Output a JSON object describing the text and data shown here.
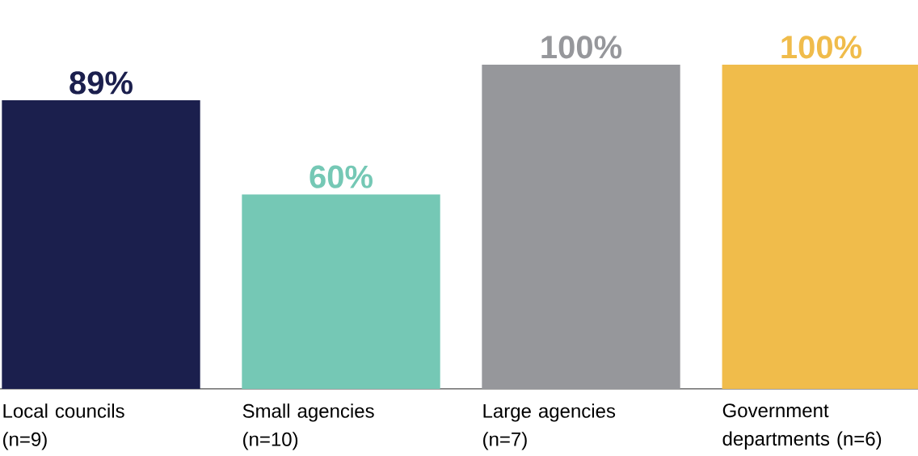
{
  "chart_data": {
    "type": "bar",
    "categories": [
      "Local councils (n=9)",
      "Small agencies (n=10)",
      "Large agencies (n=7)",
      "Government departments (n=6)"
    ],
    "values": [
      89,
      60,
      100,
      100
    ],
    "colors": [
      "#1b1f4d",
      "#75c8b5",
      "#96979b",
      "#f0bc4b"
    ],
    "value_labels": [
      "89%",
      "60%",
      "100%",
      "100%"
    ]
  }
}
